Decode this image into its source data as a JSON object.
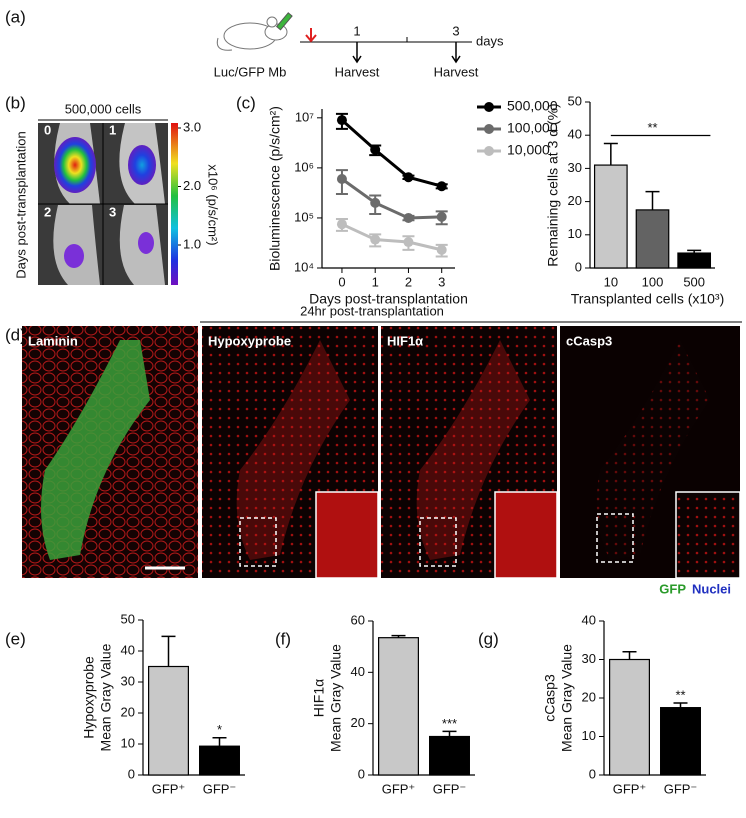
{
  "panel_labels": [
    "(a)",
    "(b)",
    "(c)",
    "(d)",
    "(e)",
    "(f)",
    "(g)"
  ],
  "timeline": {
    "cells": "Luc/GFP Mb",
    "unit": "days",
    "day_labels": [
      "1",
      "3"
    ],
    "events": [
      "Harvest",
      "Harvest"
    ]
  },
  "imaging": {
    "title": "500,000 cells",
    "side_label": "Days post-transplantation",
    "frame_labels": [
      "0",
      "1",
      "2",
      "3"
    ],
    "colorbar_label": "x10⁶ (p/s/cm²)",
    "colorbar_ticks": [
      {
        "value": 3,
        "label": "3.0"
      },
      {
        "value": 2,
        "label": "2.0"
      },
      {
        "value": 1,
        "label": "1.0"
      }
    ]
  },
  "microscopy": {
    "title": "24hr post-transplantation",
    "stains": [
      "Laminin",
      "Hypoxyprobe",
      "HIF1α",
      "cCasp3"
    ],
    "legend": [
      "GFP",
      "Nuclei"
    ]
  },
  "chart_data": [
    {
      "type": "line",
      "log_y": true,
      "xlabel": "Days post-transplantation",
      "ylabel": [
        "Bioluminescence (p/s/cm²)"
      ],
      "x": [
        0,
        1,
        2,
        3
      ],
      "xlim": [
        -0.6,
        3.4
      ],
      "xticks": [
        0,
        1,
        2,
        3
      ],
      "ylim": [
        10000,
        15000000
      ],
      "yticks": [
        {
          "value": 10000,
          "label": "10⁴"
        },
        {
          "value": 100000,
          "label": "10⁵"
        },
        {
          "value": 1000000,
          "label": "10⁶"
        },
        {
          "value": 10000000,
          "label": "10⁷"
        }
      ],
      "legend": "top-right",
      "series": [
        {
          "name": "500,000",
          "color": "#000000",
          "values": [
            9000000,
            2300000,
            650000,
            430000
          ],
          "errors": [
            3000000,
            500000,
            50000,
            40000
          ]
        },
        {
          "name": "100,000",
          "color": "#6b6b6b",
          "values": [
            600000,
            200000,
            100000,
            105000
          ],
          "errors": [
            300000,
            80000,
            10000,
            30000
          ]
        },
        {
          "name": "10,000",
          "color": "#bdbdbd",
          "values": [
            75000,
            37000,
            33000,
            23000
          ],
          "errors": [
            20000,
            10000,
            10000,
            6000
          ]
        }
      ]
    },
    {
      "type": "bar",
      "xlabel": "Transplanted cells (x10³)",
      "ylabel": [
        "Remaining cells at 3 d (%)"
      ],
      "categories": [
        "10",
        "100",
        "500"
      ],
      "values": [
        31,
        17.5,
        4.5
      ],
      "errors": [
        6.5,
        5.5,
        0.8
      ],
      "colors": [
        "#c8c8c8",
        "#636363",
        "#000000"
      ],
      "ylim": [
        0,
        50
      ],
      "yticks": [
        0,
        10,
        20,
        30,
        40,
        50
      ],
      "significance": {
        "label": "**",
        "categories": [
          "10",
          "500"
        ]
      }
    },
    {
      "type": "bar",
      "ylabel": [
        "Hypoxyprobe",
        "Mean Gray Value"
      ],
      "categories": [
        "GFP⁺",
        "GFP⁻"
      ],
      "values": [
        35,
        9.3
      ],
      "errors": [
        9.7,
        2.7
      ],
      "colors": [
        "#c8c8c8",
        "#000000"
      ],
      "ylim": [
        0,
        50
      ],
      "yticks": [
        0,
        10,
        20,
        30,
        40,
        50
      ],
      "significance_labels": [
        null,
        "*"
      ]
    },
    {
      "type": "bar",
      "ylabel": [
        "HIF1α",
        "Mean Gray Value"
      ],
      "categories": [
        "GFP⁺",
        "GFP⁻"
      ],
      "values": [
        53.5,
        15
      ],
      "errors": [
        0.8,
        2
      ],
      "colors": [
        "#c8c8c8",
        "#000000"
      ],
      "ylim": [
        0,
        60
      ],
      "yticks": [
        0,
        20,
        40,
        60
      ],
      "significance_labels": [
        null,
        "***"
      ]
    },
    {
      "type": "bar",
      "ylabel": [
        "cCasp3",
        "Mean Gray Value"
      ],
      "categories": [
        "GFP⁺",
        "GFP⁻"
      ],
      "values": [
        30,
        17.5
      ],
      "errors": [
        2,
        1.2
      ],
      "colors": [
        "#c8c8c8",
        "#000000"
      ],
      "ylim": [
        0,
        40
      ],
      "yticks": [
        0,
        10,
        20,
        30,
        40
      ],
      "significance_labels": [
        null,
        "**"
      ]
    }
  ]
}
